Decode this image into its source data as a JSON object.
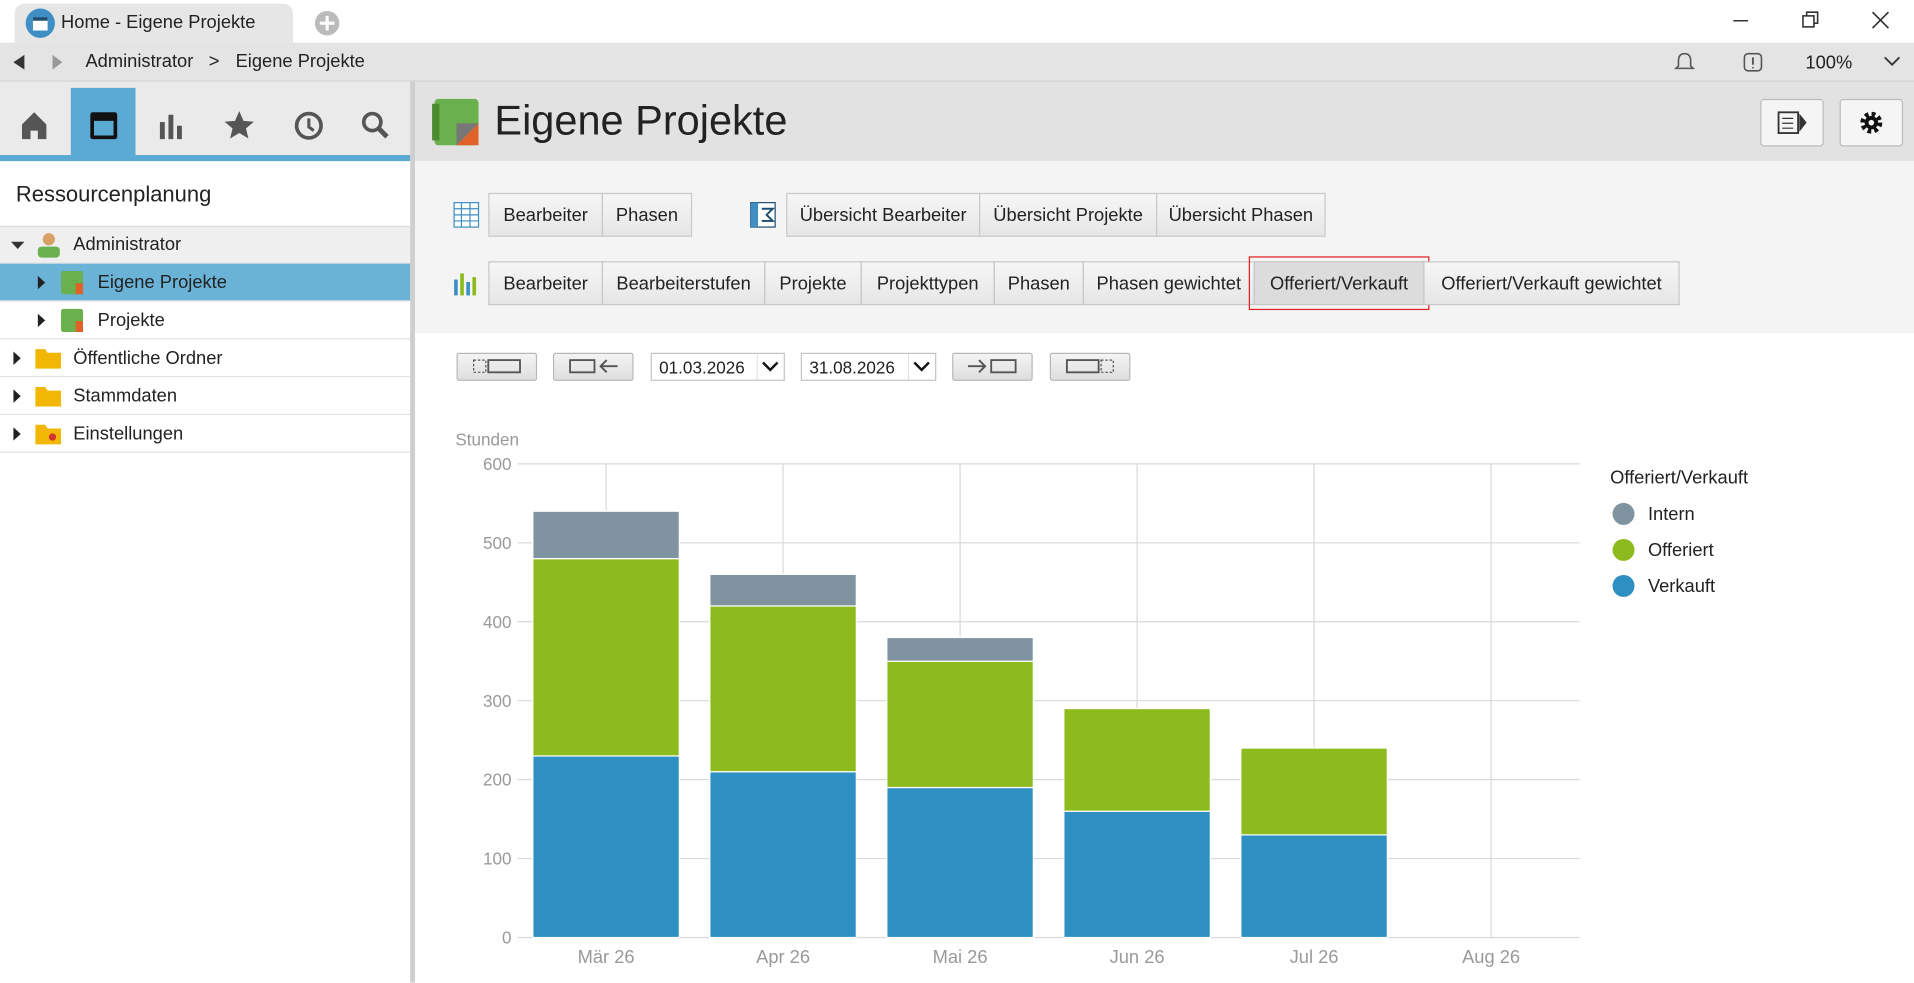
{
  "browser": {
    "tab_title": "Home - Eigene Projekte",
    "breadcrumb": [
      "Administrator",
      "Eigene Projekte"
    ],
    "breadcrumb_separator": ">",
    "zoom": "100%"
  },
  "sidebar": {
    "title": "Ressourcenplanung",
    "tree": [
      "Administrator",
      "Eigene Projekte",
      "Projekte",
      "Öffentliche Ordner",
      "Stammdaten",
      "Einstellungen"
    ]
  },
  "header": {
    "title": "Eigene Projekte"
  },
  "toolbar": {
    "table_views": [
      "Bearbeiter",
      "Phasen"
    ],
    "summary_views": [
      "Übersicht Bearbeiter",
      "Übersicht Projekte",
      "Übersicht Phasen"
    ],
    "chart_views": [
      "Bearbeiter",
      "Bearbeiterstufen",
      "Projekte",
      "Projekttypen",
      "Phasen",
      "Phasen gewichtet",
      "Offeriert/Verkauft",
      "Offeriert/Verkauft gewichtet"
    ]
  },
  "date_range": {
    "from": "01.03.2026",
    "to": "31.08.2026"
  },
  "chart_data": {
    "type": "bar",
    "stacked": true,
    "y_label": "Stunden",
    "legend_title": "Offeriert/Verkauft",
    "legend": "right",
    "grid": true,
    "categories": [
      "Mär 26",
      "Apr 26",
      "Mai 26",
      "Jun 26",
      "Jul 26",
      "Aug 26"
    ],
    "series": [
      {
        "name": "Intern",
        "color": "#7f93a0",
        "values": [
          60,
          40,
          30,
          null,
          null,
          null
        ]
      },
      {
        "name": "Offeriert",
        "color": "#8dbb1e",
        "values": [
          250,
          210,
          160,
          130,
          110,
          null
        ]
      },
      {
        "name": "Verkauft",
        "color": "#2e8fc3",
        "values": [
          230,
          210,
          190,
          160,
          130,
          null
        ]
      }
    ],
    "ylim": [
      0,
      600
    ],
    "yticks": [
      0,
      100,
      200,
      300,
      400,
      500,
      600
    ]
  }
}
